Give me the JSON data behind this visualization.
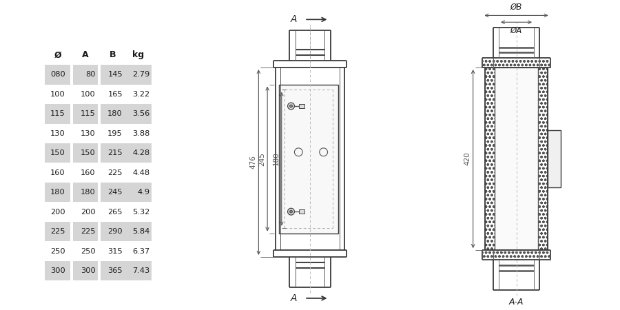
{
  "bg_color": "#ffffff",
  "line_color": "#3a3a3a",
  "dim_color": "#555555",
  "shaded_row_color": "#d5d5d5",
  "table_headers": [
    "Ø",
    "A",
    "B",
    "kg"
  ],
  "table_data": [
    [
      "080",
      "80",
      "145",
      "2.79"
    ],
    [
      "100",
      "100",
      "165",
      "3.22"
    ],
    [
      "115",
      "115",
      "180",
      "3.56"
    ],
    [
      "130",
      "130",
      "195",
      "3.88"
    ],
    [
      "150",
      "150",
      "215",
      "4.28"
    ],
    [
      "160",
      "160",
      "225",
      "4.48"
    ],
    [
      "180",
      "180",
      "245",
      "4.9"
    ],
    [
      "200",
      "200",
      "265",
      "5.32"
    ],
    [
      "225",
      "225",
      "290",
      "5.84"
    ],
    [
      "250",
      "250",
      "315",
      "6.37"
    ],
    [
      "300",
      "300",
      "365",
      "7.43"
    ]
  ],
  "shaded_rows": [
    0,
    2,
    4,
    6,
    8,
    10
  ],
  "dim_476": "476",
  "dim_245": "245",
  "dim_180": "180",
  "dim_420": "420",
  "label_A_top": "A",
  "label_A_bottom": "A",
  "label_AA": "A-A",
  "label_phiB": "ØB",
  "label_phiA": "ØA"
}
